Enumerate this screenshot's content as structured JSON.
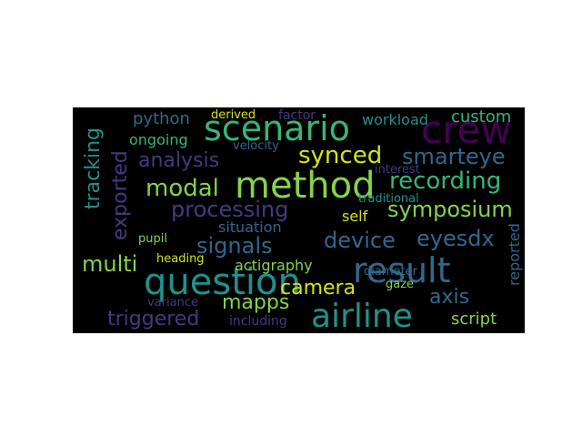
{
  "palette": {
    "yellow": "#d8e219",
    "lime": "#84d44b",
    "green": "#35b779",
    "teal": "#21918c",
    "blue": "#31688e",
    "indigo": "#443983",
    "purple": "#440154",
    "violet": "#482878"
  },
  "words": {
    "scenario": "scenario",
    "method": "method",
    "question": "question",
    "airline": "airline",
    "crew": "crew",
    "result": "result",
    "synced": "synced",
    "smarteye": "smarteye",
    "recording": "recording",
    "analysis": "analysis",
    "modal": "modal",
    "tracking": "tracking",
    "exported": "exported",
    "processing": "processing",
    "symposium": "symposium",
    "signals": "signals",
    "device": "device",
    "eyesdx": "eyesdx",
    "multi": "multi",
    "camera": "camera",
    "mapps": "mapps",
    "triggered": "triggered",
    "axis": "axis",
    "script": "script",
    "python": "python",
    "custom": "custom",
    "workload": "workload",
    "ongoing": "ongoing",
    "derived": "derived",
    "factor": "factor",
    "velocity": "velocity",
    "interest": "interest",
    "traditional": "traditional",
    "self": "self",
    "situation": "situation",
    "actigraphy": "actigraphy",
    "pupil": "pupil",
    "heading": "heading",
    "variance": "variance",
    "including": "including",
    "diameter": "diameter",
    "gaze": "gaze",
    "reported": "reported"
  }
}
